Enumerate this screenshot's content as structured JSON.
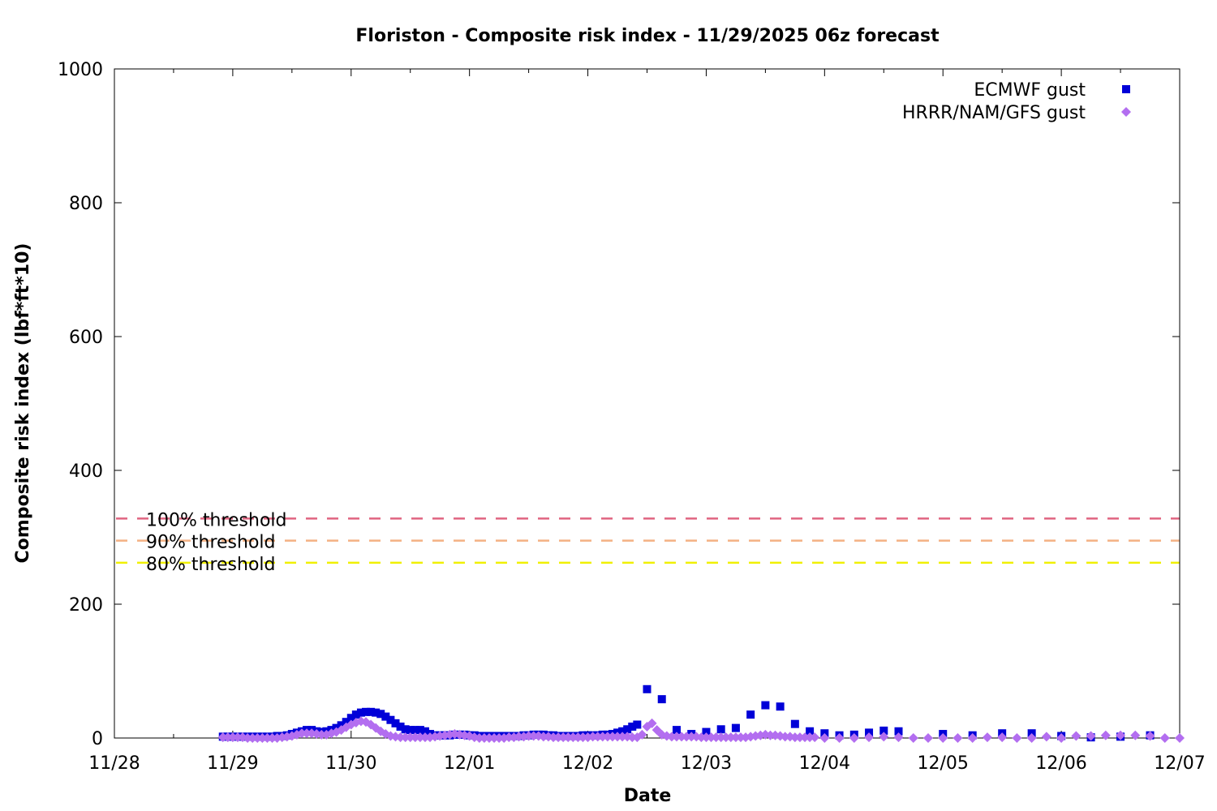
{
  "chart_data": {
    "type": "scatter",
    "title": "Floriston - Composite risk index - 11/29/2025 06z forecast",
    "xlabel": "Date",
    "ylabel": "Composite risk index (lbf*ft*10)",
    "x_origin": "2025-11-28",
    "xlim": [
      "2025-11-28 00:00",
      "2025-12-07 00:00"
    ],
    "ylim": [
      0,
      1000
    ],
    "x_ticks": [
      "11/28",
      "11/29",
      "11/30",
      "12/01",
      "12/02",
      "12/03",
      "12/04",
      "12/05",
      "12/06",
      "12/07"
    ],
    "y_ticks": [
      0,
      200,
      400,
      600,
      800,
      1000
    ],
    "grid": false,
    "legend_position": "top-right",
    "thresholds": [
      {
        "label": "100% threshold",
        "value": 328,
        "color": "#e06480"
      },
      {
        "label": "90% threshold",
        "value": 295,
        "color": "#f4b183"
      },
      {
        "label": "80% threshold",
        "value": 262,
        "color": "#f0f000"
      }
    ],
    "series": [
      {
        "name": "ECMWF gust",
        "marker": "square",
        "color": "#0000d8",
        "points": [
          [
            "2025-11-28 22:00",
            2
          ],
          [
            "2025-11-28 23:00",
            2
          ],
          [
            "2025-11-29 00:00",
            2
          ],
          [
            "2025-11-29 01:00",
            2
          ],
          [
            "2025-11-29 02:00",
            2
          ],
          [
            "2025-11-29 03:00",
            2
          ],
          [
            "2025-11-29 04:00",
            2
          ],
          [
            "2025-11-29 05:00",
            2
          ],
          [
            "2025-11-29 06:00",
            2
          ],
          [
            "2025-11-29 07:00",
            2
          ],
          [
            "2025-11-29 08:00",
            2
          ],
          [
            "2025-11-29 09:00",
            3
          ],
          [
            "2025-11-29 10:00",
            3
          ],
          [
            "2025-11-29 11:00",
            4
          ],
          [
            "2025-11-29 12:00",
            6
          ],
          [
            "2025-11-29 13:00",
            8
          ],
          [
            "2025-11-29 14:00",
            10
          ],
          [
            "2025-11-29 15:00",
            12
          ],
          [
            "2025-11-29 16:00",
            12
          ],
          [
            "2025-11-29 17:00",
            10
          ],
          [
            "2025-11-29 18:00",
            9
          ],
          [
            "2025-11-29 19:00",
            10
          ],
          [
            "2025-11-29 20:00",
            12
          ],
          [
            "2025-11-29 21:00",
            15
          ],
          [
            "2025-11-29 22:00",
            19
          ],
          [
            "2025-11-29 23:00",
            24
          ],
          [
            "2025-11-30 00:00",
            30
          ],
          [
            "2025-11-30 01:00",
            35
          ],
          [
            "2025-11-30 02:00",
            38
          ],
          [
            "2025-11-30 03:00",
            39
          ],
          [
            "2025-11-30 04:00",
            39
          ],
          [
            "2025-11-30 05:00",
            38
          ],
          [
            "2025-11-30 06:00",
            36
          ],
          [
            "2025-11-30 07:00",
            32
          ],
          [
            "2025-11-30 08:00",
            27
          ],
          [
            "2025-11-30 09:00",
            22
          ],
          [
            "2025-11-30 10:00",
            17
          ],
          [
            "2025-11-30 11:00",
            13
          ],
          [
            "2025-11-30 12:00",
            12
          ],
          [
            "2025-11-30 13:00",
            12
          ],
          [
            "2025-11-30 14:00",
            12
          ],
          [
            "2025-11-30 15:00",
            10
          ],
          [
            "2025-11-30 16:00",
            6
          ],
          [
            "2025-11-30 17:00",
            4
          ],
          [
            "2025-11-30 18:00",
            4
          ],
          [
            "2025-11-30 19:00",
            4
          ],
          [
            "2025-11-30 20:00",
            4
          ],
          [
            "2025-11-30 21:00",
            5
          ],
          [
            "2025-11-30 22:00",
            5
          ],
          [
            "2025-11-30 23:00",
            5
          ],
          [
            "2025-12-01 00:00",
            4
          ],
          [
            "2025-12-01 01:00",
            4
          ],
          [
            "2025-12-01 02:00",
            3
          ],
          [
            "2025-12-01 03:00",
            3
          ],
          [
            "2025-12-01 04:00",
            3
          ],
          [
            "2025-12-01 05:00",
            3
          ],
          [
            "2025-12-01 06:00",
            3
          ],
          [
            "2025-12-01 07:00",
            3
          ],
          [
            "2025-12-01 08:00",
            3
          ],
          [
            "2025-12-01 09:00",
            3
          ],
          [
            "2025-12-01 10:00",
            3
          ],
          [
            "2025-12-01 11:00",
            4
          ],
          [
            "2025-12-01 12:00",
            4
          ],
          [
            "2025-12-01 13:00",
            5
          ],
          [
            "2025-12-01 14:00",
            5
          ],
          [
            "2025-12-01 15:00",
            5
          ],
          [
            "2025-12-01 16:00",
            4
          ],
          [
            "2025-12-01 17:00",
            4
          ],
          [
            "2025-12-01 18:00",
            3
          ],
          [
            "2025-12-01 19:00",
            3
          ],
          [
            "2025-12-01 20:00",
            3
          ],
          [
            "2025-12-01 21:00",
            3
          ],
          [
            "2025-12-01 22:00",
            3
          ],
          [
            "2025-12-01 23:00",
            4
          ],
          [
            "2025-12-02 00:00",
            4
          ],
          [
            "2025-12-02 01:00",
            4
          ],
          [
            "2025-12-02 02:00",
            4
          ],
          [
            "2025-12-02 03:00",
            5
          ],
          [
            "2025-12-02 04:00",
            5
          ],
          [
            "2025-12-02 05:00",
            6
          ],
          [
            "2025-12-02 06:00",
            8
          ],
          [
            "2025-12-02 07:00",
            10
          ],
          [
            "2025-12-02 08:00",
            13
          ],
          [
            "2025-12-02 09:00",
            17
          ],
          [
            "2025-12-02 10:00",
            20
          ],
          [
            "2025-12-02 12:00",
            73
          ],
          [
            "2025-12-02 15:00",
            58
          ],
          [
            "2025-12-02 18:00",
            12
          ],
          [
            "2025-12-02 21:00",
            6
          ],
          [
            "2025-12-03 00:00",
            9
          ],
          [
            "2025-12-03 03:00",
            13
          ],
          [
            "2025-12-03 06:00",
            15
          ],
          [
            "2025-12-03 09:00",
            35
          ],
          [
            "2025-12-03 12:00",
            49
          ],
          [
            "2025-12-03 15:00",
            47
          ],
          [
            "2025-12-03 18:00",
            21
          ],
          [
            "2025-12-03 21:00",
            10
          ],
          [
            "2025-12-04 00:00",
            7
          ],
          [
            "2025-12-04 03:00",
            4
          ],
          [
            "2025-12-04 06:00",
            5
          ],
          [
            "2025-12-04 09:00",
            8
          ],
          [
            "2025-12-04 12:00",
            11
          ],
          [
            "2025-12-04 15:00",
            10
          ],
          [
            "2025-12-05 00:00",
            6
          ],
          [
            "2025-12-05 06:00",
            4
          ],
          [
            "2025-12-05 12:00",
            7
          ],
          [
            "2025-12-05 18:00",
            7
          ],
          [
            "2025-12-06 00:00",
            3
          ],
          [
            "2025-12-06 06:00",
            1
          ],
          [
            "2025-12-06 12:00",
            2
          ],
          [
            "2025-12-06 18:00",
            4
          ]
        ]
      },
      {
        "name": "HRRR/NAM/GFS gust",
        "marker": "diamond",
        "color": "#b36ef0",
        "points": [
          [
            "2025-11-28 22:00",
            1
          ],
          [
            "2025-11-28 23:00",
            1
          ],
          [
            "2025-11-29 00:00",
            1
          ],
          [
            "2025-11-29 01:00",
            1
          ],
          [
            "2025-11-29 02:00",
            1
          ],
          [
            "2025-11-29 03:00",
            0
          ],
          [
            "2025-11-29 04:00",
            0
          ],
          [
            "2025-11-29 05:00",
            0
          ],
          [
            "2025-11-29 06:00",
            0
          ],
          [
            "2025-11-29 07:00",
            0
          ],
          [
            "2025-11-29 08:00",
            0
          ],
          [
            "2025-11-29 09:00",
            0
          ],
          [
            "2025-11-29 10:00",
            1
          ],
          [
            "2025-11-29 11:00",
            2
          ],
          [
            "2025-11-29 12:00",
            3
          ],
          [
            "2025-11-29 13:00",
            5
          ],
          [
            "2025-11-29 14:00",
            7
          ],
          [
            "2025-11-29 15:00",
            7
          ],
          [
            "2025-11-29 16:00",
            7
          ],
          [
            "2025-11-29 17:00",
            6
          ],
          [
            "2025-11-29 18:00",
            5
          ],
          [
            "2025-11-29 19:00",
            5
          ],
          [
            "2025-11-29 20:00",
            7
          ],
          [
            "2025-11-29 21:00",
            9
          ],
          [
            "2025-11-29 22:00",
            12
          ],
          [
            "2025-11-29 23:00",
            16
          ],
          [
            "2025-11-30 00:00",
            20
          ],
          [
            "2025-11-30 01:00",
            23
          ],
          [
            "2025-11-30 02:00",
            25
          ],
          [
            "2025-11-30 03:00",
            24
          ],
          [
            "2025-11-30 04:00",
            20
          ],
          [
            "2025-11-30 05:00",
            15
          ],
          [
            "2025-11-30 06:00",
            10
          ],
          [
            "2025-11-30 07:00",
            6
          ],
          [
            "2025-11-30 08:00",
            3
          ],
          [
            "2025-11-30 09:00",
            2
          ],
          [
            "2025-11-30 10:00",
            1
          ],
          [
            "2025-11-30 11:00",
            1
          ],
          [
            "2025-11-30 12:00",
            1
          ],
          [
            "2025-11-30 13:00",
            1
          ],
          [
            "2025-11-30 14:00",
            1
          ],
          [
            "2025-11-30 15:00",
            1
          ],
          [
            "2025-11-30 16:00",
            1
          ],
          [
            "2025-11-30 17:00",
            2
          ],
          [
            "2025-11-30 18:00",
            3
          ],
          [
            "2025-11-30 19:00",
            4
          ],
          [
            "2025-11-30 20:00",
            5
          ],
          [
            "2025-11-30 21:00",
            6
          ],
          [
            "2025-11-30 22:00",
            5
          ],
          [
            "2025-11-30 23:00",
            4
          ],
          [
            "2025-12-01 00:00",
            3
          ],
          [
            "2025-12-01 01:00",
            1
          ],
          [
            "2025-12-01 02:00",
            0
          ],
          [
            "2025-12-01 03:00",
            0
          ],
          [
            "2025-12-01 04:00",
            0
          ],
          [
            "2025-12-01 05:00",
            0
          ],
          [
            "2025-12-01 06:00",
            0
          ],
          [
            "2025-12-01 07:00",
            0
          ],
          [
            "2025-12-01 08:00",
            1
          ],
          [
            "2025-12-01 09:00",
            1
          ],
          [
            "2025-12-01 10:00",
            2
          ],
          [
            "2025-12-01 11:00",
            2
          ],
          [
            "2025-12-01 12:00",
            3
          ],
          [
            "2025-12-01 13:00",
            3
          ],
          [
            "2025-12-01 14:00",
            3
          ],
          [
            "2025-12-01 15:00",
            2
          ],
          [
            "2025-12-01 16:00",
            2
          ],
          [
            "2025-12-01 17:00",
            1
          ],
          [
            "2025-12-01 18:00",
            1
          ],
          [
            "2025-12-01 19:00",
            1
          ],
          [
            "2025-12-01 20:00",
            1
          ],
          [
            "2025-12-01 21:00",
            1
          ],
          [
            "2025-12-01 22:00",
            1
          ],
          [
            "2025-12-01 23:00",
            1
          ],
          [
            "2025-12-02 00:00",
            1
          ],
          [
            "2025-12-02 01:00",
            2
          ],
          [
            "2025-12-02 02:00",
            2
          ],
          [
            "2025-12-02 03:00",
            2
          ],
          [
            "2025-12-02 04:00",
            2
          ],
          [
            "2025-12-02 05:00",
            2
          ],
          [
            "2025-12-02 06:00",
            2
          ],
          [
            "2025-12-02 07:00",
            2
          ],
          [
            "2025-12-02 08:00",
            2
          ],
          [
            "2025-12-02 09:00",
            1
          ],
          [
            "2025-12-02 10:00",
            1
          ],
          [
            "2025-12-02 11:00",
            5
          ],
          [
            "2025-12-02 12:00",
            17
          ],
          [
            "2025-12-02 13:00",
            22
          ],
          [
            "2025-12-02 14:00",
            12
          ],
          [
            "2025-12-02 15:00",
            5
          ],
          [
            "2025-12-02 16:00",
            3
          ],
          [
            "2025-12-02 17:00",
            2
          ],
          [
            "2025-12-02 18:00",
            2
          ],
          [
            "2025-12-02 19:00",
            2
          ],
          [
            "2025-12-02 20:00",
            2
          ],
          [
            "2025-12-02 21:00",
            2
          ],
          [
            "2025-12-02 22:00",
            2
          ],
          [
            "2025-12-02 23:00",
            1
          ],
          [
            "2025-12-03 00:00",
            1
          ],
          [
            "2025-12-03 01:00",
            1
          ],
          [
            "2025-12-03 02:00",
            1
          ],
          [
            "2025-12-03 03:00",
            1
          ],
          [
            "2025-12-03 04:00",
            1
          ],
          [
            "2025-12-03 05:00",
            1
          ],
          [
            "2025-12-03 06:00",
            1
          ],
          [
            "2025-12-03 07:00",
            1
          ],
          [
            "2025-12-03 08:00",
            1
          ],
          [
            "2025-12-03 09:00",
            2
          ],
          [
            "2025-12-03 10:00",
            3
          ],
          [
            "2025-12-03 11:00",
            4
          ],
          [
            "2025-12-03 12:00",
            5
          ],
          [
            "2025-12-03 13:00",
            4
          ],
          [
            "2025-12-03 14:00",
            4
          ],
          [
            "2025-12-03 15:00",
            3
          ],
          [
            "2025-12-03 16:00",
            2
          ],
          [
            "2025-12-03 17:00",
            2
          ],
          [
            "2025-12-03 18:00",
            1
          ],
          [
            "2025-12-03 19:00",
            1
          ],
          [
            "2025-12-03 20:00",
            1
          ],
          [
            "2025-12-03 21:00",
            1
          ],
          [
            "2025-12-03 22:00",
            1
          ],
          [
            "2025-12-04 00:00",
            0
          ],
          [
            "2025-12-04 03:00",
            0
          ],
          [
            "2025-12-04 06:00",
            0
          ],
          [
            "2025-12-04 09:00",
            1
          ],
          [
            "2025-12-04 12:00",
            2
          ],
          [
            "2025-12-04 15:00",
            1
          ],
          [
            "2025-12-04 18:00",
            0
          ],
          [
            "2025-12-04 21:00",
            0
          ],
          [
            "2025-12-05 00:00",
            0
          ],
          [
            "2025-12-05 03:00",
            0
          ],
          [
            "2025-12-05 06:00",
            0
          ],
          [
            "2025-12-05 09:00",
            1
          ],
          [
            "2025-12-05 12:00",
            1
          ],
          [
            "2025-12-05 15:00",
            0
          ],
          [
            "2025-12-05 18:00",
            0
          ],
          [
            "2025-12-05 21:00",
            2
          ],
          [
            "2025-12-06 00:00",
            0
          ],
          [
            "2025-12-06 03:00",
            3
          ],
          [
            "2025-12-06 06:00",
            3
          ],
          [
            "2025-12-06 09:00",
            4
          ],
          [
            "2025-12-06 12:00",
            4
          ],
          [
            "2025-12-06 15:00",
            4
          ],
          [
            "2025-12-06 18:00",
            3
          ],
          [
            "2025-12-06 21:00",
            0
          ],
          [
            "2025-12-07 00:00",
            0
          ]
        ]
      }
    ]
  }
}
